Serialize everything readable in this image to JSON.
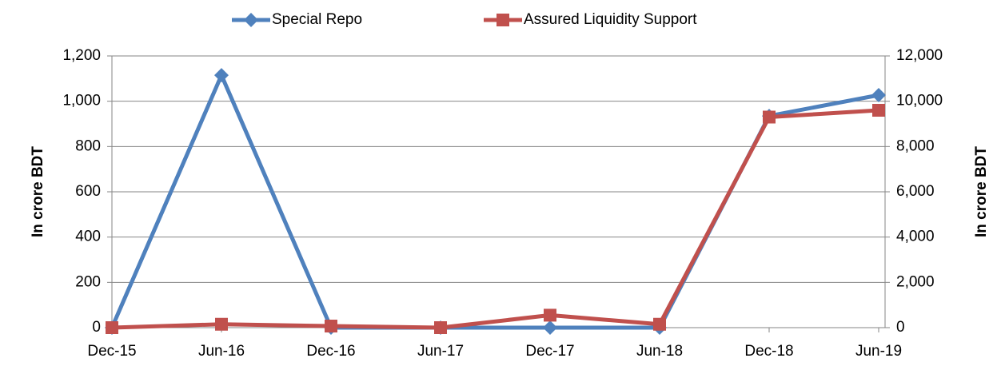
{
  "chart_data": {
    "type": "line",
    "categories": [
      "Dec-15",
      "Jun-16",
      "Dec-16",
      "Jun-17",
      "Dec-17",
      "Jun-18",
      "Dec-18",
      "Jun-19"
    ],
    "series": [
      {
        "name": "Special Repo",
        "color": "#4f81bd",
        "marker": "diamond",
        "values": [
          0,
          1115,
          0,
          0,
          0,
          0,
          935,
          1027
        ]
      },
      {
        "name": "Assured Liquidity Support",
        "color": "#c0504d",
        "marker": "square",
        "axis": "y2",
        "values": [
          0,
          150,
          70,
          0,
          550,
          150,
          9300,
          9600
        ]
      }
    ],
    "y_label": "In crore BDT",
    "y2_label": "In crore BDT",
    "ylim": [
      0,
      1200
    ],
    "yticks": [
      0,
      200,
      400,
      600,
      800,
      {
        "value": 1000,
        "label": "1,000"
      },
      {
        "value": 1200,
        "label": "1,200"
      }
    ],
    "y2lim": [
      0,
      12000
    ],
    "y2ticks": [
      0,
      {
        "value": 2000,
        "label": "2,000"
      },
      {
        "value": 4000,
        "label": "4,000"
      },
      {
        "value": 6000,
        "label": "6,000"
      },
      {
        "value": 8000,
        "label": "8,000"
      },
      {
        "value": 10000,
        "label": "10,000"
      },
      {
        "value": 12000,
        "label": "12,000"
      }
    ],
    "grid": true,
    "legend": "top"
  }
}
